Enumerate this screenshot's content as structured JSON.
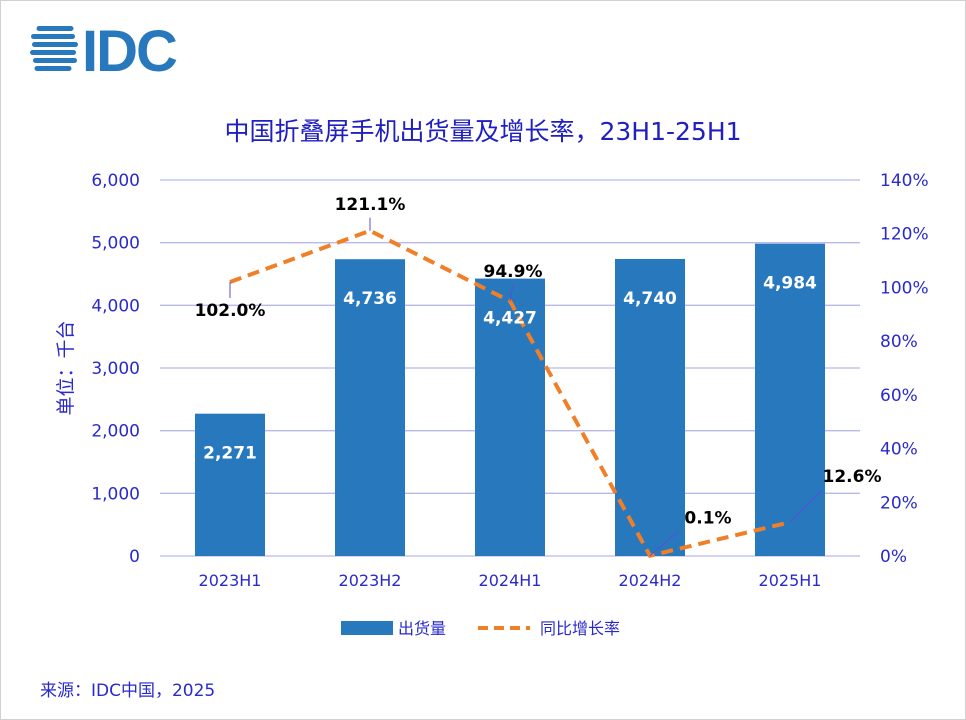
{
  "logo": {
    "text": "IDC",
    "color": "#2878be"
  },
  "source": "来源：IDC中国，2025",
  "colors": {
    "bar": "#2878be",
    "line": "#f07f28",
    "axis_text": "#2a2acc",
    "grid": "#b8b8ea",
    "title": "#2020c0",
    "leader": "#5a4fd8"
  },
  "chart_data": {
    "type": "bar",
    "title": "中国折叠屏手机出货量及增长率，23H1-25H1",
    "ylabel": "单位：千台",
    "categories": [
      "2023H1",
      "2023H2",
      "2024H1",
      "2024H2",
      "2025H1"
    ],
    "ylim": [
      0,
      6000
    ],
    "y_ticks": [
      "0",
      "1,000",
      "2,000",
      "3,000",
      "4,000",
      "5,000",
      "6,000"
    ],
    "y2lim": [
      0,
      140
    ],
    "y2_ticks": [
      "0%",
      "20%",
      "40%",
      "60%",
      "80%",
      "100%",
      "120%",
      "140%"
    ],
    "grid": true,
    "legend_position": "bottom",
    "series": [
      {
        "name": "出货量",
        "type": "bar",
        "values": [
          2271,
          4736,
          4427,
          4740,
          4984
        ],
        "labels": [
          "2,271",
          "4,736",
          "4,427",
          "4,740",
          "4,984"
        ]
      },
      {
        "name": "同比增长率",
        "type": "line",
        "axis": "right",
        "style": "dashed",
        "values": [
          102.0,
          121.1,
          94.9,
          0.1,
          12.6
        ],
        "labels": [
          "102.0%",
          "121.1%",
          "94.9%",
          "0.1%",
          "12.6%"
        ]
      }
    ]
  }
}
